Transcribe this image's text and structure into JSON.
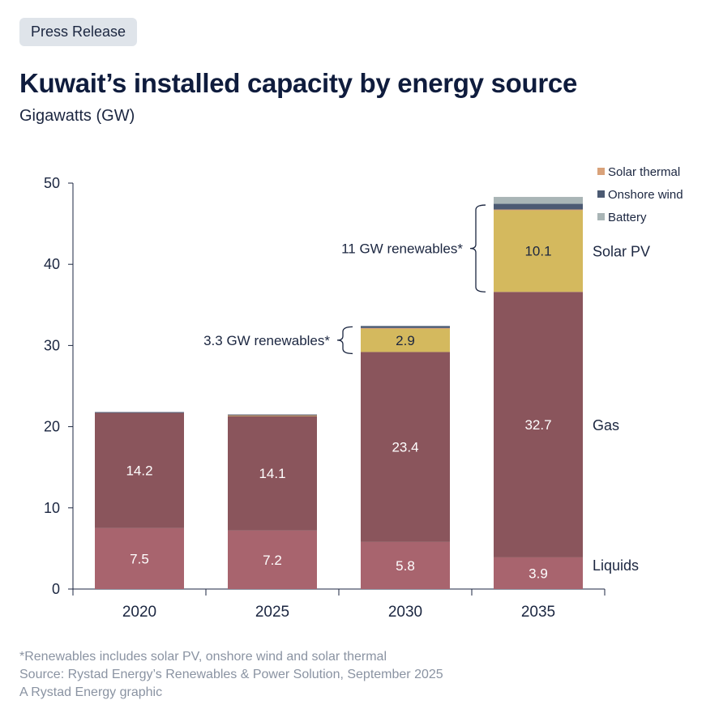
{
  "badge": "Press Release",
  "title": "Kuwait’s installed capacity by energy source",
  "subtitle": "Gigawatts (GW)",
  "footnotes": [
    "*Renewables includes solar PV, onshore wind and solar thermal",
    "Source: Rystad Energy’s Renewables & Power Solution, September 2025",
    "A Rystad Energy graphic"
  ],
  "chart_data": {
    "type": "bar",
    "stacked": true,
    "categories": [
      "2020",
      "2025",
      "2030",
      "2035"
    ],
    "ylim": [
      0,
      50
    ],
    "yticks": [
      0,
      10,
      20,
      30,
      40,
      50
    ],
    "series": [
      {
        "name": "Liquids",
        "color": "#a8646e",
        "values": [
          7.5,
          7.2,
          5.8,
          3.9
        ],
        "labels": [
          "7.5",
          "7.2",
          "5.8",
          "3.9"
        ],
        "label_color": "#ffffff"
      },
      {
        "name": "Gas",
        "color": "#8a555c",
        "values": [
          14.2,
          14.1,
          23.4,
          32.7
        ],
        "labels": [
          "14.2",
          "14.1",
          "23.4",
          "32.7"
        ],
        "label_color": "#ffffff"
      },
      {
        "name": "Solar PV",
        "color": "#d4b95e",
        "values": [
          0,
          0.1,
          2.9,
          10.1
        ],
        "labels": [
          "",
          "",
          "2.9",
          "10.1"
        ],
        "label_color": "#1b2640"
      },
      {
        "name": "Solar thermal",
        "color": "#d9a27a",
        "values": [
          0,
          0.05,
          0.05,
          0.05
        ],
        "labels": [
          "",
          "",
          "",
          ""
        ]
      },
      {
        "name": "Onshore wind",
        "color": "#4c5a73",
        "values": [
          0.1,
          0.05,
          0.25,
          0.7
        ],
        "labels": [
          "",
          "",
          "",
          ""
        ]
      },
      {
        "name": "Battery",
        "color": "#a9b5b6",
        "values": [
          0,
          0,
          0,
          0.85
        ],
        "labels": [
          "",
          "",
          "",
          ""
        ]
      }
    ],
    "legend": [
      "Solar thermal",
      "Onshore wind",
      "Battery"
    ],
    "series_labels": [
      "Liquids",
      "Gas",
      "Solar PV"
    ],
    "annotations": [
      {
        "text": "3.3 GW renewables*",
        "category": "2030",
        "from": 29.0,
        "to": 32.3
      },
      {
        "text": "11 GW renewables*",
        "category": "2035",
        "from": 36.6,
        "to": 47.3
      }
    ]
  }
}
